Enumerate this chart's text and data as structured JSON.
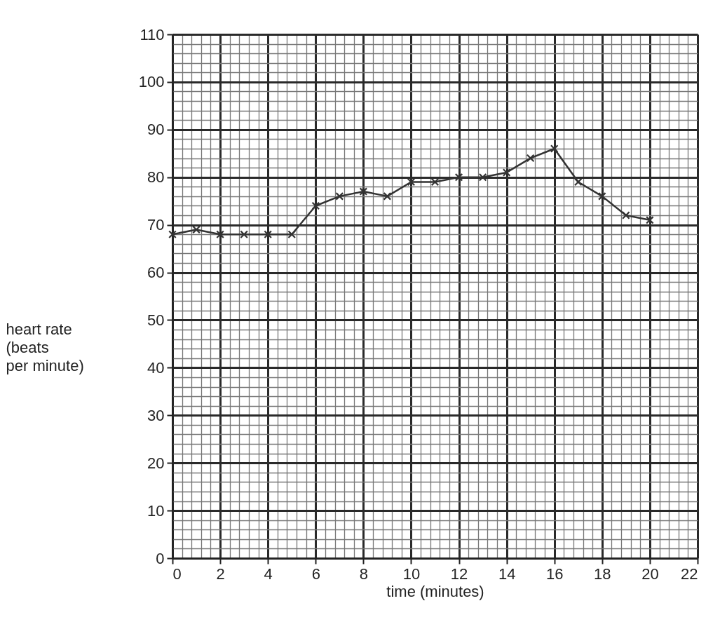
{
  "chart_data": {
    "type": "line",
    "xlabel": "time (minutes)",
    "ylabel": "heart rate\n(beats\nper minute)",
    "x": [
      0,
      1,
      2,
      3,
      4,
      5,
      6,
      7,
      8,
      9,
      10,
      11,
      12,
      13,
      14,
      15,
      16,
      17,
      18,
      19,
      20
    ],
    "series": [
      {
        "color": "#333333",
        "values": [
          68,
          69,
          68,
          68,
          68,
          68,
          74,
          76,
          77,
          76,
          79,
          79,
          80,
          80,
          81,
          84,
          86,
          79,
          76,
          72,
          71
        ]
      }
    ],
    "xlim": [
      0,
      22
    ],
    "xticks": [
      0,
      2,
      4,
      6,
      8,
      10,
      12,
      14,
      16,
      18,
      20,
      22
    ],
    "ylim": [
      0,
      110
    ],
    "yticks": [
      0,
      10,
      20,
      30,
      40,
      50,
      60,
      70,
      80,
      90,
      100,
      110
    ],
    "grid": true,
    "marker": "cross",
    "line_style": "solid"
  }
}
